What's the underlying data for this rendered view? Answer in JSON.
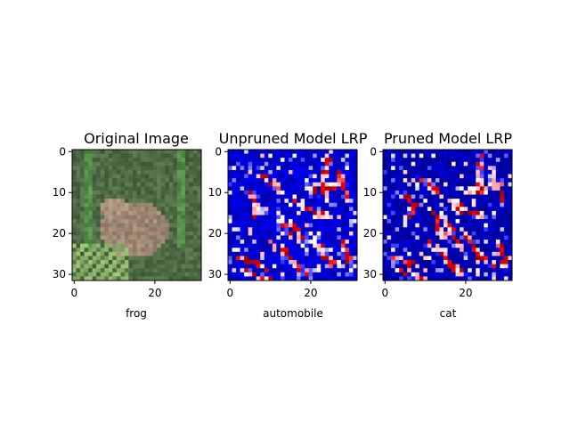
{
  "chart_data": [
    {
      "type": "heatmap",
      "title": "Original Image",
      "xlabel": "frog",
      "xticks": [
        0,
        20
      ],
      "yticks": [
        0,
        10,
        20,
        30
      ],
      "xlim": [
        -0.5,
        31.5
      ],
      "ylim": [
        31.5,
        -0.5
      ],
      "grid_size": [
        32,
        32
      ],
      "content": "rgb photograph",
      "colors": {
        "background": "#4f6b45",
        "subject": "#9c8672",
        "leaves": "#8fb36a"
      }
    },
    {
      "type": "heatmap",
      "title": "Unpruned Model LRP",
      "xlabel": "automobile",
      "xticks": [
        0,
        20
      ],
      "yticks": [
        0,
        10,
        20,
        30
      ],
      "xlim": [
        -0.5,
        31.5
      ],
      "ylim": [
        31.5,
        -0.5
      ],
      "grid_size": [
        32,
        32
      ],
      "colormap": "seismic"
    },
    {
      "type": "heatmap",
      "title": "Pruned Model LRP",
      "xlabel": "cat",
      "xticks": [
        0,
        20
      ],
      "yticks": [
        0,
        10,
        20,
        30
      ],
      "xlim": [
        -0.5,
        31.5
      ],
      "ylim": [
        31.5,
        -0.5
      ],
      "grid_size": [
        32,
        32
      ],
      "colormap": "seismic"
    }
  ]
}
